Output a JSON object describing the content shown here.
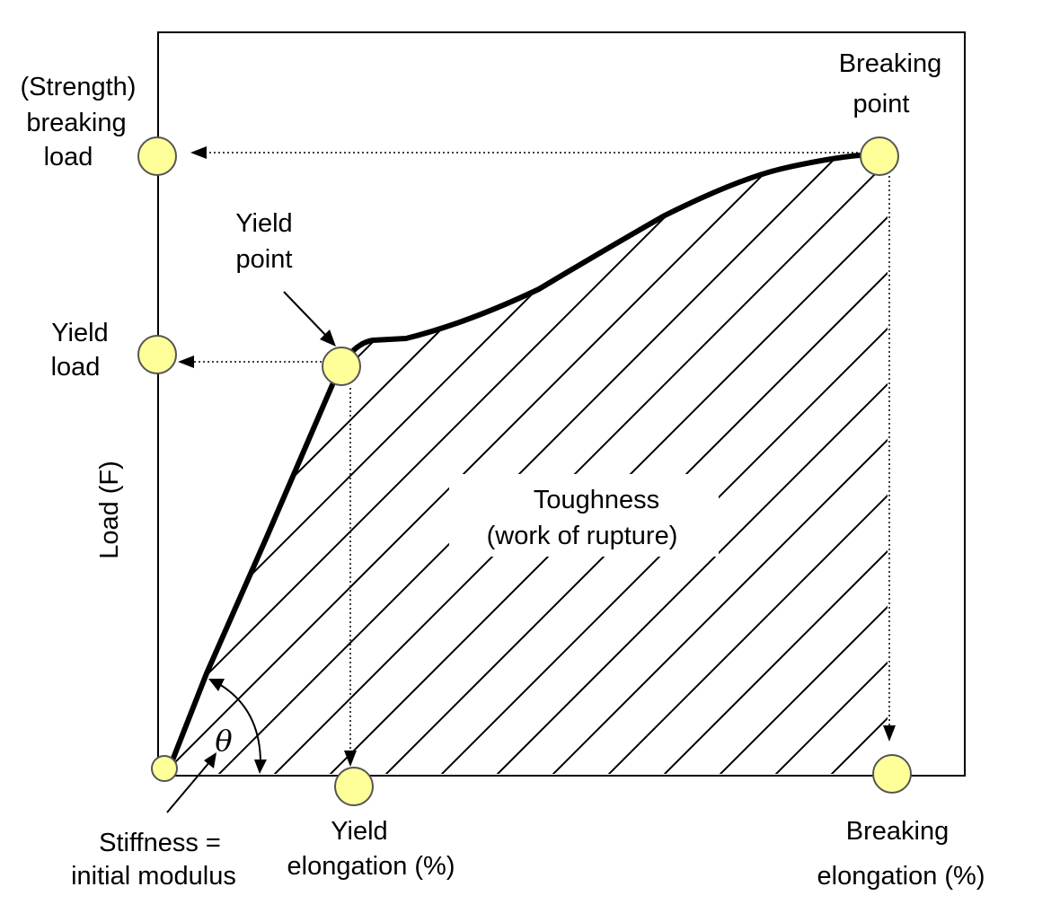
{
  "labels": {
    "strength_line1": "(Strength)",
    "strength_line2": "breaking",
    "strength_line3": "load",
    "breaking_point_line1": "Breaking",
    "breaking_point_line2": "point",
    "yield_point_line1": "Yield",
    "yield_point_line2": "point",
    "yield_load_line1": "Yield",
    "yield_load_line2": "load",
    "y_axis": "Load (F)",
    "toughness_line1": "Toughness",
    "toughness_line2": "(work of rupture)",
    "theta": "θ",
    "stiffness_line1": "Stiffness =",
    "stiffness_line2": "initial modulus",
    "yield_elong_line1": "Yield",
    "yield_elong_line2": "elongation (%)",
    "breaking_elong_line1": "Breaking",
    "breaking_elong_line2": "elongation (%)"
  },
  "colors": {
    "marker_fill": "#ffff99",
    "marker_stroke": "#555555",
    "line": "#000000"
  }
}
